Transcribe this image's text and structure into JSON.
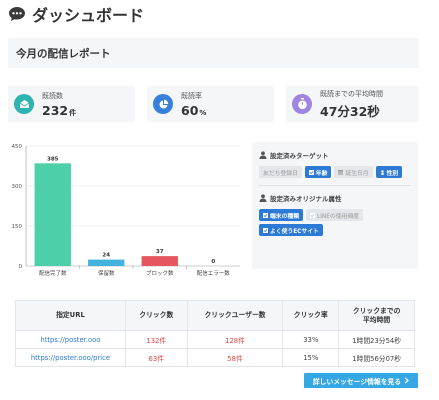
{
  "page": {
    "title": "ダッシュボード",
    "title_icon": "speech-bubble-icon"
  },
  "report": {
    "title": "今月の配信レポート"
  },
  "kpis": [
    {
      "label": "既読数",
      "value": "232",
      "unit": "件",
      "icon": "open-envelope-icon",
      "color": "#2fb3b0"
    },
    {
      "label": "既読率",
      "value": "60",
      "unit": "%",
      "icon": "pie-chart-icon",
      "color": "#3a7fdc"
    },
    {
      "label": "既読までの平均時間",
      "value": "47分32秒",
      "unit": "",
      "icon": "stopwatch-icon",
      "color": "#9e86e0"
    }
  ],
  "chart_data": {
    "type": "bar",
    "categories": [
      "配信完了数",
      "保留数",
      "ブロック数",
      "配信エラー数"
    ],
    "values": [
      385,
      24,
      37,
      0
    ],
    "colors": [
      "#4dcfaa",
      "#43b2de",
      "#e5565e",
      "#cccccc"
    ],
    "yticks": [
      0,
      150,
      300,
      450
    ],
    "ylim": [
      0,
      450
    ],
    "grid": true,
    "legend": "none"
  },
  "filters": {
    "target_title": "設定済みターゲット",
    "target_tags": [
      {
        "label": "友だち登録日",
        "active": false,
        "icon": ""
      },
      {
        "label": "年齢",
        "active": true,
        "icon": "check-icon"
      },
      {
        "label": "誕生日月",
        "active": false,
        "icon": "calendar-icon"
      },
      {
        "label": "性別",
        "active": true,
        "icon": "gender-icon"
      }
    ],
    "attr_title": "設定済みオリジナル属性",
    "attr_tags": [
      {
        "label": "端末の種類",
        "active": true,
        "icon": "check-icon"
      },
      {
        "label": "LINEの使用頻度",
        "active": false,
        "icon": "check-icon"
      },
      {
        "label": "よく使うECサイト",
        "active": true,
        "icon": "check-icon"
      }
    ]
  },
  "table": {
    "headers": [
      "指定URL",
      "クリック数",
      "クリックユーザー数",
      "クリック率",
      "クリックまでの\n平均時間"
    ],
    "rows": [
      {
        "url": "https://poster.ooo",
        "clicks": "132件",
        "users": "128件",
        "rate": "33%",
        "avg": "1時間23分54秒"
      },
      {
        "url": "https://poster.ooo/price",
        "clicks": "63件",
        "users": "58件",
        "rate": "15%",
        "avg": "1時間56分07秒"
      }
    ]
  },
  "detail_button": {
    "label": "詳しいメッセージ情報を見る"
  }
}
